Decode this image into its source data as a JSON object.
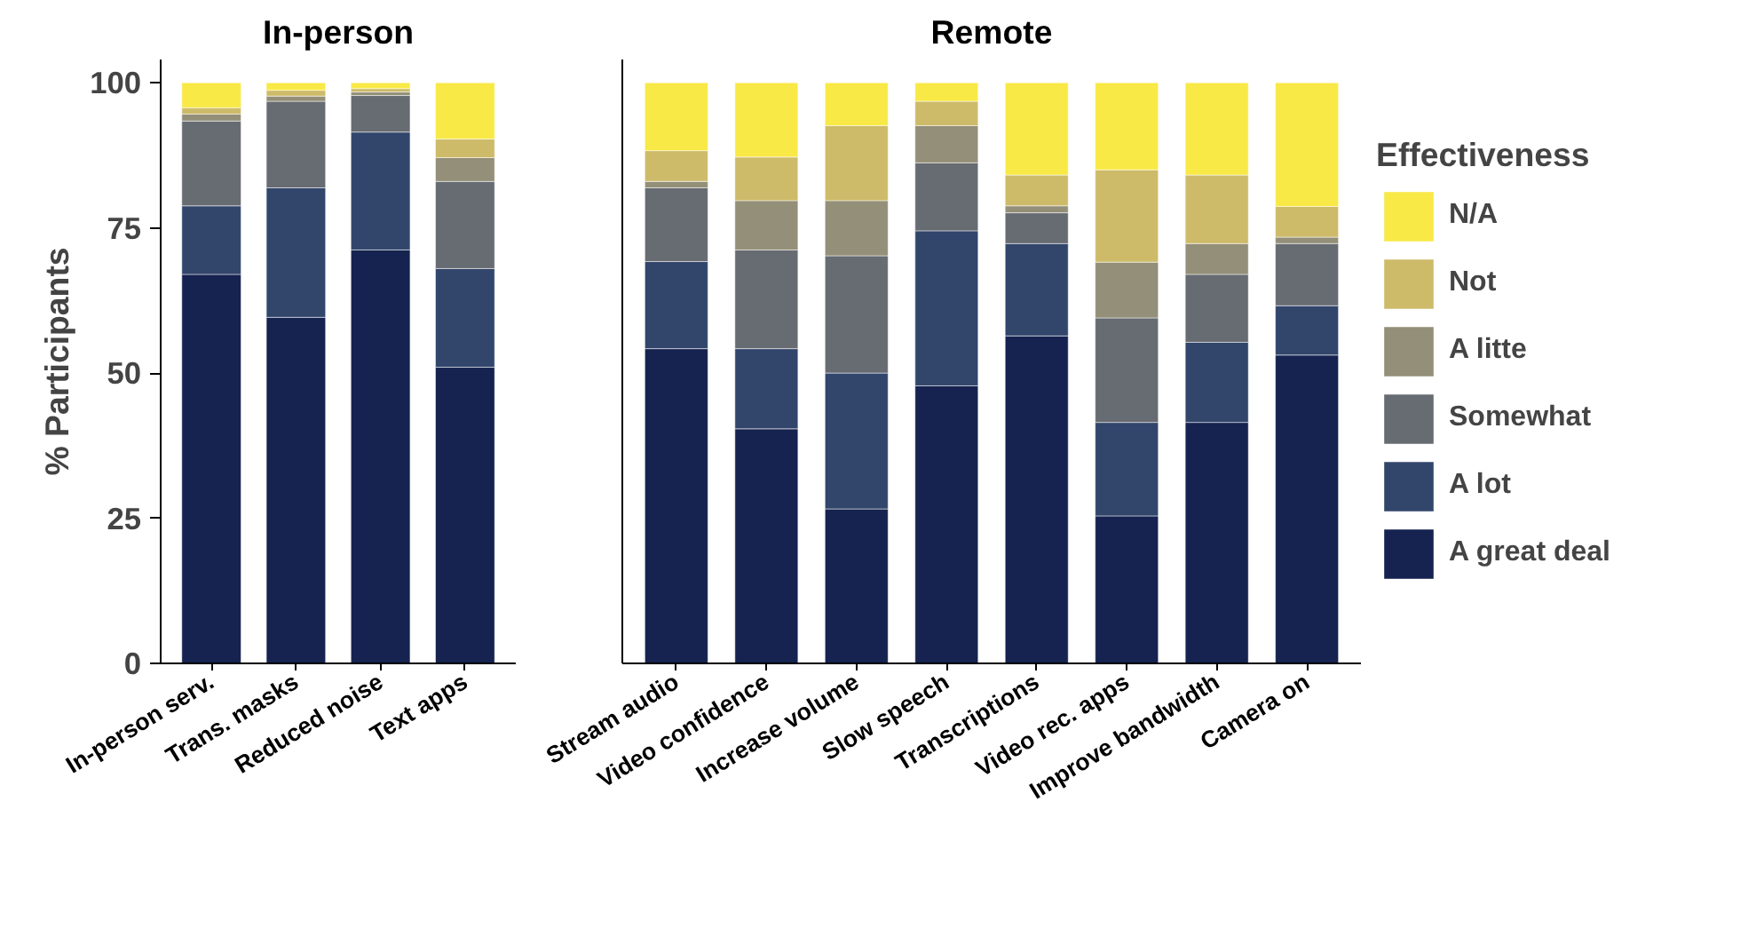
{
  "chart_data": [
    {
      "type": "bar",
      "title": "In-person",
      "ylabel": "% Participants",
      "stacked": true,
      "categories": [
        "In-person serv.",
        "Trans. masks",
        "Reduced noise",
        "Text apps"
      ],
      "ylim": [
        0,
        104
      ],
      "yticks": [
        0,
        25,
        50,
        75,
        100
      ],
      "grid": false,
      "legend": false,
      "series": [
        {
          "color": "#162350",
          "values": [
            67,
            59.6,
            71.2,
            51
          ]
        },
        {
          "color": "#32466c",
          "values": [
            11.8,
            22.3,
            20.3,
            17
          ]
        },
        {
          "color": "#676b72",
          "values": [
            14.6,
            14.9,
            6.3,
            15
          ]
        },
        {
          "color": "#948f78",
          "values": [
            1.2,
            0.9,
            0.6,
            4.1
          ]
        },
        {
          "color": "#cdbb6a",
          "values": [
            1.1,
            1,
            0.6,
            3.2
          ]
        },
        {
          "color": "#f9e946",
          "values": [
            4.3,
            1.3,
            1,
            9.7
          ]
        }
      ]
    },
    {
      "type": "bar",
      "title": "Remote",
      "stacked": true,
      "categories": [
        "Stream audio",
        "Video confidence",
        "Increase volume",
        "Slow speech",
        "Transcriptions",
        "Video rec. apps",
        "Improve bandwidth",
        "Camera on"
      ],
      "ylim": [
        0,
        104
      ],
      "yticks": [
        0,
        25,
        50,
        75,
        100
      ],
      "tick_labels": "x",
      "grid": false,
      "legend": "right",
      "legend_title": "Effectiveness",
      "series": [
        {
          "name": "A great deal",
          "color": "#162350",
          "values": [
            54.2,
            40.4,
            26.6,
            47.8,
            56.4,
            25.4,
            41.5,
            53.1
          ]
        },
        {
          "name": "A lot",
          "color": "#32466c",
          "values": [
            15,
            13.8,
            23.4,
            26.7,
            15.9,
            16.1,
            13.8,
            8.5
          ]
        },
        {
          "name": "Somewhat",
          "color": "#676b72",
          "values": [
            12.7,
            17,
            20.2,
            11.7,
            5.3,
            18,
            11.7,
            10.7
          ]
        },
        {
          "name": "A litte",
          "color": "#948f78",
          "values": [
            1.1,
            8.5,
            9.5,
            6.4,
            1.2,
            9.6,
            5.3,
            1.1
          ]
        },
        {
          "name": "Not",
          "color": "#cdbb6a",
          "values": [
            5.3,
            7.5,
            12.9,
            4.2,
            5.3,
            15.9,
            11.8,
            5.3
          ]
        },
        {
          "name": "N/A",
          "color": "#f9e946",
          "values": [
            11.7,
            12.8,
            7.4,
            3.2,
            15.9,
            15,
            15.9,
            21.3
          ]
        }
      ]
    }
  ]
}
